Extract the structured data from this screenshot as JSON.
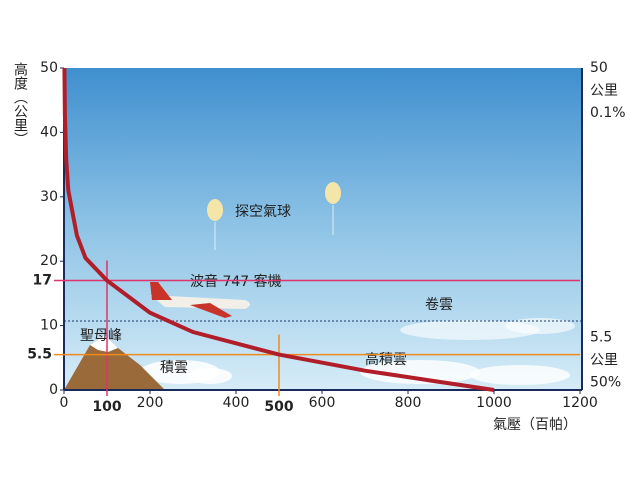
{
  "chart_data": {
    "type": "line",
    "y_axis_label": "高度（公里）",
    "x_axis_label": "氣壓（百帕）",
    "x": [
      1,
      2,
      5,
      10,
      30,
      50,
      100,
      200,
      300,
      500,
      700,
      850,
      1000
    ],
    "values": [
      50,
      43,
      36,
      31,
      24,
      20.5,
      17,
      12,
      9,
      5.5,
      3,
      1.5,
      0
    ],
    "color": "#b01e2a",
    "xlim": [
      0,
      1200
    ],
    "xticks": [
      0,
      200,
      400,
      600,
      800,
      1000,
      1200
    ],
    "ylim": [
      0,
      50
    ],
    "yticks": [
      0,
      10,
      20,
      30,
      40,
      50
    ],
    "highlights": [
      {
        "x": 100,
        "y": 17,
        "color": "#e0336a"
      },
      {
        "x": 500,
        "y": 5.5,
        "color": "#f08a1c"
      }
    ],
    "right_labels": [
      {
        "y": 50,
        "lines": [
          "公里",
          "0.1%"
        ]
      },
      {
        "y": 5.5,
        "lines": [
          "公里",
          "50%"
        ]
      }
    ],
    "annotations": [
      "探空氣球",
      "波音 747 客機",
      "卷雲",
      "聖母峰",
      "積雲",
      "高積雲"
    ]
  }
}
